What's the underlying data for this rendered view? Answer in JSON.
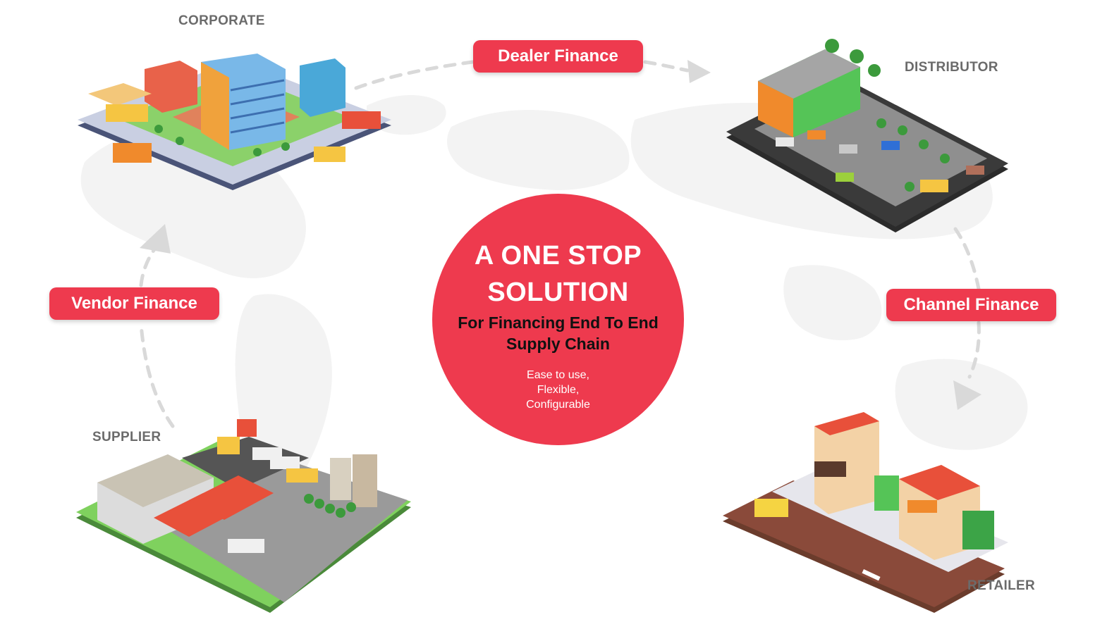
{
  "nodes": {
    "corporate": "CORPORATE",
    "distributor": "DISTRIBUTOR",
    "retailer": "RETAILER",
    "supplier": "SUPPLIER"
  },
  "flows": {
    "dealer": "Dealer Finance",
    "channel": "Channel Finance",
    "vendor": "Vendor Finance"
  },
  "center": {
    "title_line1": "A ONE STOP",
    "title_line2": "SOLUTION",
    "subtitle_line1": "For Financing End To End",
    "subtitle_line2": "Supply Chain",
    "note_line1": "Ease to use,",
    "note_line2": "Flexible,",
    "note_line3": "Configurable"
  },
  "colors": {
    "accent_red": "#ee3a4e",
    "label_grey": "#6b6b6b",
    "arrow_grey": "#d9d9d9"
  },
  "icons": [
    "corporate-city-illustration",
    "distributor-parking-illustration",
    "retailer-street-illustration",
    "supplier-warehouse-illustration"
  ]
}
